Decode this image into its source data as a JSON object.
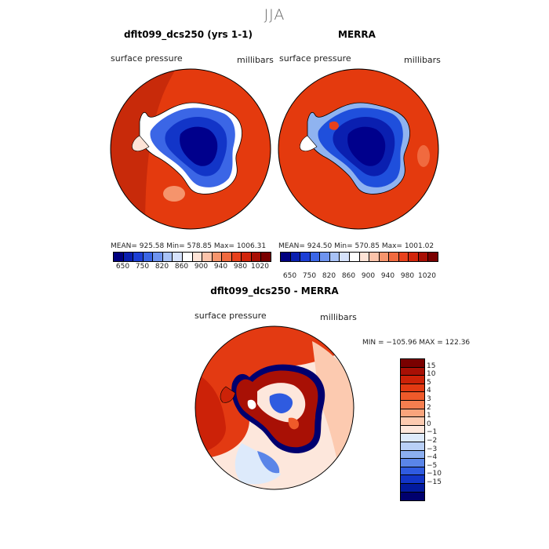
{
  "figure": {
    "season": "JJA"
  },
  "panels": [
    {
      "title": "dflt099_dcs250 (yrs 1-1)",
      "variable": "surface pressure",
      "units": "millibars",
      "stats": "MEAN=  925.58    Min=  578.85    Max=  1006.31"
    },
    {
      "title": "MERRA",
      "variable": "surface pressure",
      "units": "millibars",
      "stats": "MEAN=  924.50    Min=  570.85    Max=  1001.02"
    }
  ],
  "pressure_colorbar": {
    "colors": [
      "#00007f",
      "#0a1fb0",
      "#1d3fd6",
      "#3b66e6",
      "#6f94ef",
      "#a8c2f6",
      "#d6e2fb",
      "#ffffff",
      "#fde3d6",
      "#fbc3aa",
      "#f6956d",
      "#f06a3f",
      "#e8411c",
      "#d2260c",
      "#a80f05",
      "#7a0000"
    ],
    "ticks": [
      "650",
      "750",
      "820",
      "860",
      "900",
      "940",
      "980",
      "1020"
    ]
  },
  "difference_panel": {
    "title": "dflt099_dcs250 - MERRA",
    "variable": "surface pressure",
    "units": "millibars",
    "stats": "MIN = −105.96  MAX = 122.36"
  },
  "difference_colorbar": {
    "colors": [
      "#7a0000",
      "#a81005",
      "#cc2208",
      "#e33a12",
      "#ef5a2a",
      "#f57e4f",
      "#f9a47c",
      "#fccab0",
      "#fde7dc",
      "#ddeafb",
      "#b9d0f6",
      "#8caff0",
      "#5a85e8",
      "#2f5be0",
      "#1235c8",
      "#021a9e",
      "#00006e"
    ],
    "labels": [
      "15",
      "10",
      "5",
      "4",
      "3",
      "2",
      "1",
      "0",
      "−1",
      "−2",
      "−3",
      "−4",
      "−5",
      "−10",
      "−15"
    ]
  },
  "colors": {
    "ocean_red": "#e43a0e",
    "deep_red": "#c82a0a",
    "ice_dark_blue": "#00008c",
    "ice_mid_blue": "#1f4fdc",
    "ice_light_blue": "#8fb3f0"
  }
}
